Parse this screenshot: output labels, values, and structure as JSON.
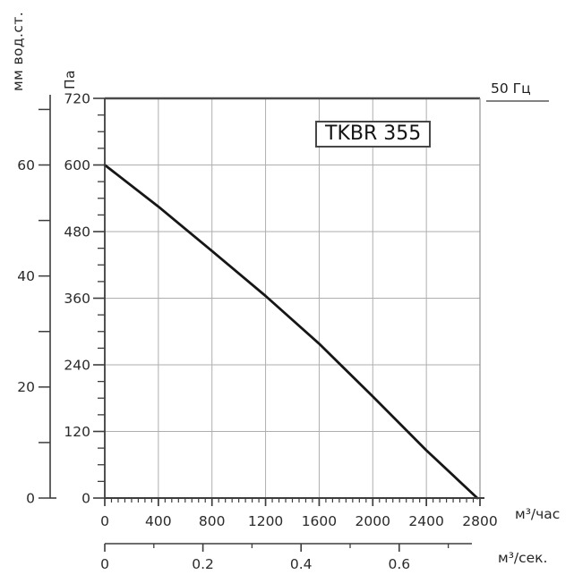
{
  "chart_data": {
    "type": "line",
    "title": "TKBR 355",
    "frequency_label": "50 Гц",
    "series": [
      {
        "name": "TKBR 355 performance curve",
        "x_unit": "м³/час",
        "y_unit": "Па",
        "points": [
          [
            0,
            600
          ],
          [
            400,
            525
          ],
          [
            800,
            445
          ],
          [
            1200,
            364
          ],
          [
            1600,
            278
          ],
          [
            2000,
            183
          ],
          [
            2400,
            86
          ],
          [
            2780,
            0
          ]
        ]
      }
    ],
    "axes": {
      "pa": {
        "label": "Па",
        "ticks": [
          0,
          120,
          240,
          360,
          480,
          600,
          720
        ],
        "minor_step": 30,
        "min": 0,
        "max": 720
      },
      "mm": {
        "label": "мм вод.ст.",
        "ticks": [
          0,
          20,
          40,
          60
        ],
        "minor_step": 10,
        "min": 0,
        "max": 70
      },
      "hour": {
        "label": "м³/час",
        "ticks": [
          0,
          400,
          800,
          1200,
          1600,
          2000,
          2400,
          2800
        ],
        "minor_step": 50,
        "min": 0,
        "max": 2800
      },
      "sec": {
        "label": "м³/сек.",
        "tick_labels": [
          "0",
          "0.2",
          "0.4",
          "0.6"
        ],
        "tick_values": [
          0,
          0.2,
          0.4,
          0.6
        ],
        "minor_values": [
          0.1,
          0.3,
          0.5,
          0.7
        ],
        "min": 0,
        "max": 0.75
      }
    },
    "grid": true,
    "legend_position": "none",
    "colors": {
      "curve": "#161616",
      "axis": "#3d3d3d",
      "grid": "#aeaeae",
      "border_top": "#4a4a4a",
      "border_right": "#9a9a9a",
      "text": "#2a2a2a",
      "underline": "#828282"
    }
  }
}
